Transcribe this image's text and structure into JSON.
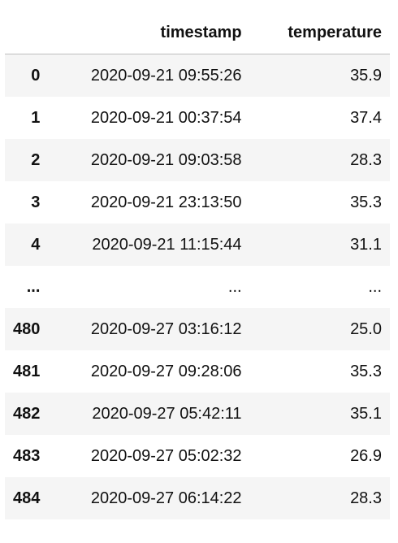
{
  "table": {
    "columns": {
      "index": "",
      "timestamp": "timestamp",
      "temperature": "temperature"
    },
    "rows": [
      {
        "index": "0",
        "timestamp": "2020-09-21 09:55:26",
        "temperature": "35.9"
      },
      {
        "index": "1",
        "timestamp": "2020-09-21 00:37:54",
        "temperature": "37.4"
      },
      {
        "index": "2",
        "timestamp": "2020-09-21 09:03:58",
        "temperature": "28.3"
      },
      {
        "index": "3",
        "timestamp": "2020-09-21 23:13:50",
        "temperature": "35.3"
      },
      {
        "index": "4",
        "timestamp": "2020-09-21 11:15:44",
        "temperature": "31.1"
      },
      {
        "index": "...",
        "timestamp": "...",
        "temperature": "..."
      },
      {
        "index": "480",
        "timestamp": "2020-09-27 03:16:12",
        "temperature": "25.0"
      },
      {
        "index": "481",
        "timestamp": "2020-09-27 09:28:06",
        "temperature": "35.3"
      },
      {
        "index": "482",
        "timestamp": "2020-09-27 05:42:11",
        "temperature": "35.1"
      },
      {
        "index": "483",
        "timestamp": "2020-09-27 05:02:32",
        "temperature": "26.9"
      },
      {
        "index": "484",
        "timestamp": "2020-09-27 06:14:22",
        "temperature": "28.3"
      }
    ]
  }
}
